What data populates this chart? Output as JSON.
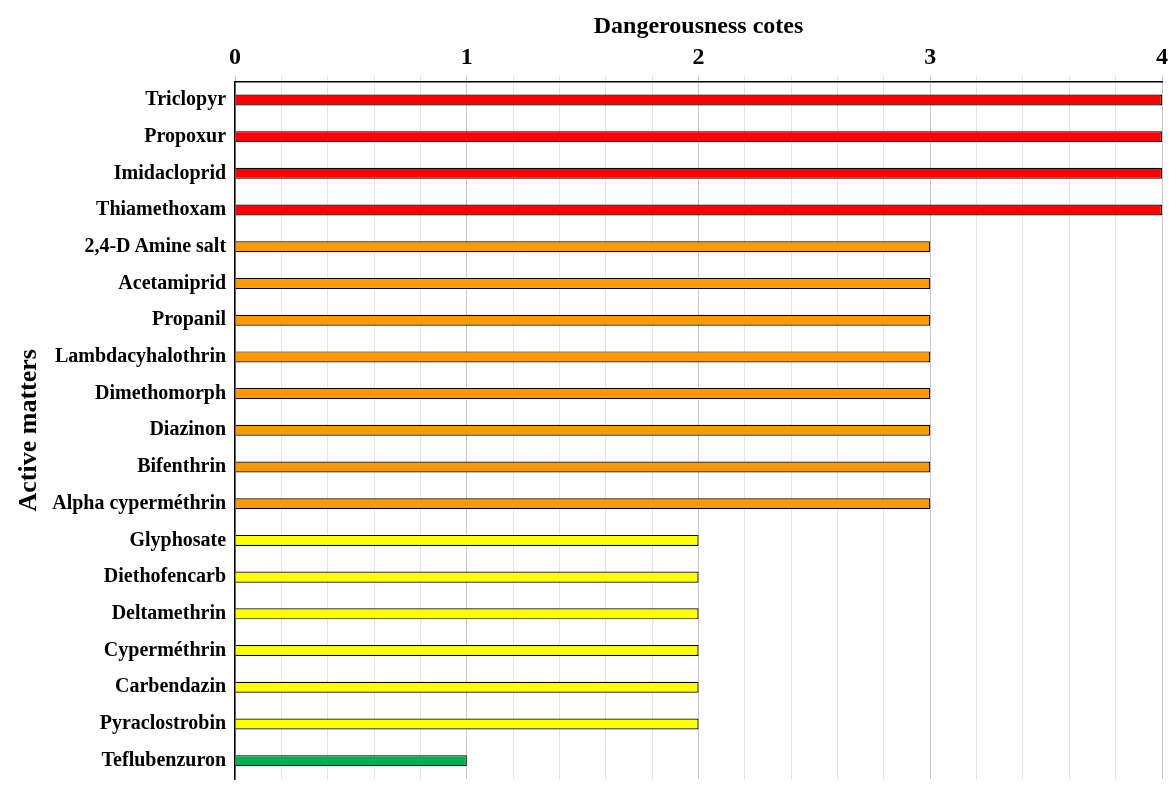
{
  "chart_data": {
    "type": "bar",
    "orientation": "horizontal",
    "xlabel": "Dangerousness cotes",
    "ylabel": "Active matters",
    "categories": [
      "Triclopyr",
      "Propoxur",
      "Imidacloprid",
      "Thiamethoxam",
      "2,4-D Amine salt",
      "Acetamiprid",
      "Propanil",
      "Lambdacyhalothrin",
      "Dimethomorph",
      "Diazinon",
      "Bifenthrin",
      "Alpha cyperméthrin",
      "Glyphosate",
      "Diethofencarb",
      "Deltamethrin",
      "Cyperméthrin",
      "Carbendazin",
      "Pyraclostrobin",
      "Teflubenzuron"
    ],
    "values": [
      4,
      4,
      4,
      4,
      3,
      3,
      3,
      3,
      3,
      3,
      3,
      3,
      2,
      2,
      2,
      2,
      2,
      2,
      1
    ],
    "colors": [
      "#ff0000",
      "#ff0000",
      "#ff0000",
      "#ff0000",
      "#ff9900",
      "#ff9900",
      "#ff9900",
      "#ff9900",
      "#ff9900",
      "#ff9900",
      "#ff9900",
      "#ff9900",
      "#ffff00",
      "#ffff00",
      "#ffff00",
      "#ffff00",
      "#ffff00",
      "#ffff00",
      "#00b050"
    ],
    "xlim": [
      0,
      4
    ],
    "xticks": [
      0,
      {
        "value": 0.2,
        "label": null
      },
      {
        "value": 0.4,
        "label": null
      },
      {
        "value": 0.6,
        "label": null
      },
      {
        "value": 0.8,
        "label": null
      },
      1,
      {
        "value": 1.2,
        "label": null
      },
      {
        "value": 1.4,
        "label": null
      },
      {
        "value": 1.6,
        "label": null
      },
      {
        "value": 1.8,
        "label": null
      },
      2,
      {
        "value": 2.2,
        "label": null
      },
      {
        "value": 2.4,
        "label": null
      },
      {
        "value": 2.6,
        "label": null
      },
      {
        "value": 2.8,
        "label": null
      },
      3,
      {
        "value": 3.2,
        "label": null
      },
      {
        "value": 3.4,
        "label": null
      },
      {
        "value": 3.6,
        "label": null
      },
      {
        "value": 3.8,
        "label": null
      },
      4
    ],
    "grid": "x",
    "legend": false
  }
}
